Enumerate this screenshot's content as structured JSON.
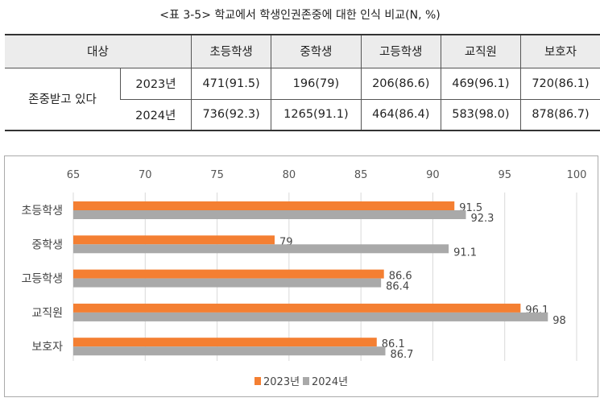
{
  "title": "<표 3-5> 학교에서 학생인권존중에 대한 인식 비교(N, %)",
  "table": {
    "header": [
      "대상",
      "초등학생",
      "중학생",
      "고등학생",
      "교직원",
      "보호자"
    ],
    "row_label": "존중받고 있다",
    "rows": [
      {
        "year": "2023년",
        "cells": [
          "471(91.5)",
          "196(79)",
          "206(86.6)",
          "469(96.1)",
          "720(86.1)"
        ]
      },
      {
        "year": "2024년",
        "cells": [
          "736(92.3)",
          "1265(91.1)",
          "464(86.4)",
          "583(98.0)",
          "878(86.7)"
        ]
      }
    ]
  },
  "chart_data": {
    "type": "bar",
    "orientation": "horizontal",
    "categories": [
      "초등학생",
      "중학생",
      "고등학생",
      "교직원",
      "보호자"
    ],
    "series": [
      {
        "name": "2023년",
        "color": "#f47f32",
        "values": [
          91.5,
          79,
          86.6,
          96.1,
          86.1
        ],
        "labels": [
          "91.5",
          "79",
          "86.6",
          "96.1",
          "86.1"
        ]
      },
      {
        "name": "2024년",
        "color": "#a9a9a9",
        "values": [
          92.3,
          91.1,
          86.4,
          98,
          86.7
        ],
        "labels": [
          "92.3",
          "91.1",
          "86.4",
          "98",
          "86.7"
        ]
      }
    ],
    "xlim": [
      65,
      100
    ],
    "ticks": [
      "65",
      "70",
      "75",
      "80",
      "85",
      "90",
      "95",
      "100"
    ],
    "grid": true,
    "legend": "bottom"
  }
}
